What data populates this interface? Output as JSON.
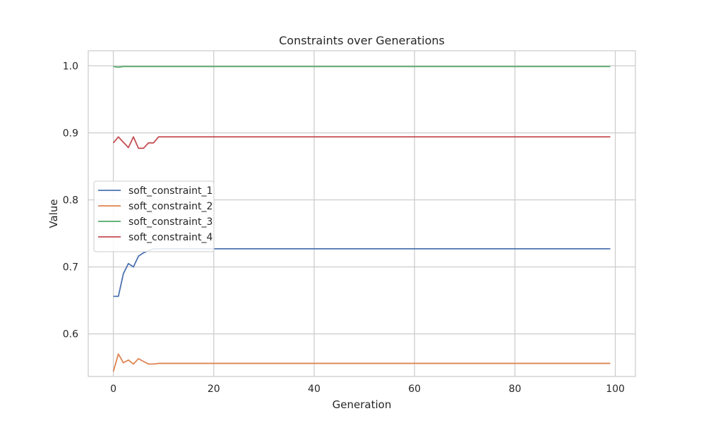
{
  "chart_data": {
    "type": "line",
    "title": "Constraints over Generations",
    "xlabel": "Generation",
    "ylabel": "Value",
    "xlim": [
      -5,
      104
    ],
    "ylim": [
      0.5365,
      1.0225
    ],
    "xticks": [
      0,
      20,
      40,
      60,
      80,
      100
    ],
    "yticks": [
      0.6,
      0.7,
      0.8,
      0.9,
      1.0
    ],
    "xtick_labels": [
      "0",
      "20",
      "40",
      "60",
      "80",
      "100"
    ],
    "ytick_labels": [
      "0.6",
      "0.7",
      "0.8",
      "0.9",
      "1.0"
    ],
    "grid": true,
    "legend_position": "center-left",
    "series": [
      {
        "name": "soft_constraint_1",
        "color": "#4c72b0",
        "x": [
          0,
          1,
          2,
          3,
          4,
          5,
          6,
          7,
          8,
          9,
          99
        ],
        "y": [
          0.656,
          0.656,
          0.69,
          0.705,
          0.7,
          0.716,
          0.721,
          0.724,
          0.727,
          0.727,
          0.727
        ]
      },
      {
        "name": "soft_constraint_2",
        "color": "#dd8452",
        "x": [
          0,
          1,
          2,
          3,
          4,
          5,
          6,
          7,
          8,
          9,
          99
        ],
        "y": [
          0.544,
          0.57,
          0.557,
          0.561,
          0.555,
          0.563,
          0.559,
          0.555,
          0.555,
          0.556,
          0.556
        ]
      },
      {
        "name": "soft_constraint_3",
        "color": "#55a868",
        "x": [
          0,
          1,
          2,
          99
        ],
        "y": [
          0.999,
          0.998,
          0.999,
          0.999
        ]
      },
      {
        "name": "soft_constraint_4",
        "color": "#c44e52",
        "x": [
          0,
          1,
          2,
          3,
          4,
          5,
          6,
          7,
          8,
          9,
          99
        ],
        "y": [
          0.885,
          0.894,
          0.886,
          0.878,
          0.894,
          0.877,
          0.877,
          0.885,
          0.885,
          0.894,
          0.894
        ]
      }
    ]
  }
}
